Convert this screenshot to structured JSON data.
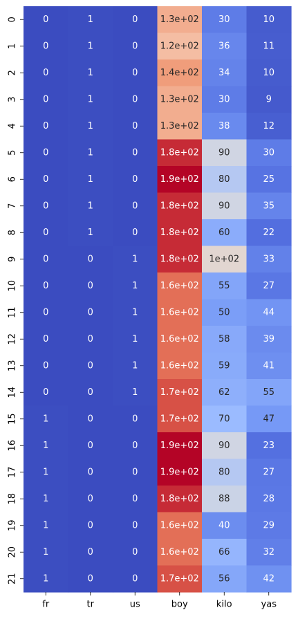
{
  "chart_data": {
    "type": "heatmap",
    "colormap": "coolwarm",
    "annotated": true,
    "colorbar": false,
    "columns": [
      "fr",
      "tr",
      "us",
      "boy",
      "kilo",
      "yas"
    ],
    "rows": [
      "0",
      "1",
      "2",
      "3",
      "4",
      "5",
      "6",
      "7",
      "8",
      "9",
      "10",
      "11",
      "12",
      "13",
      "14",
      "15",
      "16",
      "17",
      "18",
      "19",
      "20",
      "21"
    ],
    "vmin": 0,
    "vmax": 190,
    "values": [
      [
        0,
        1,
        0,
        130,
        30,
        10
      ],
      [
        0,
        1,
        0,
        120,
        36,
        11
      ],
      [
        0,
        1,
        0,
        140,
        34,
        10
      ],
      [
        0,
        1,
        0,
        130,
        30,
        9
      ],
      [
        0,
        1,
        0,
        130,
        38,
        12
      ],
      [
        0,
        1,
        0,
        180,
        90,
        30
      ],
      [
        0,
        1,
        0,
        190,
        80,
        25
      ],
      [
        0,
        1,
        0,
        180,
        90,
        35
      ],
      [
        0,
        1,
        0,
        180,
        60,
        22
      ],
      [
        0,
        0,
        1,
        180,
        100,
        33
      ],
      [
        0,
        0,
        1,
        160,
        55,
        27
      ],
      [
        0,
        0,
        1,
        160,
        50,
        44
      ],
      [
        0,
        0,
        1,
        160,
        58,
        39
      ],
      [
        0,
        0,
        1,
        160,
        59,
        41
      ],
      [
        0,
        0,
        1,
        170,
        62,
        55
      ],
      [
        1,
        0,
        0,
        170,
        70,
        47
      ],
      [
        1,
        0,
        0,
        190,
        90,
        23
      ],
      [
        1,
        0,
        0,
        190,
        80,
        27
      ],
      [
        1,
        0,
        0,
        180,
        88,
        28
      ],
      [
        1,
        0,
        0,
        160,
        40,
        29
      ],
      [
        1,
        0,
        0,
        160,
        66,
        32
      ],
      [
        1,
        0,
        0,
        170,
        56,
        42
      ]
    ],
    "labels": [
      [
        "0",
        "1",
        "0",
        "1.3e+02",
        "30",
        "10"
      ],
      [
        "0",
        "1",
        "0",
        "1.2e+02",
        "36",
        "11"
      ],
      [
        "0",
        "1",
        "0",
        "1.4e+02",
        "34",
        "10"
      ],
      [
        "0",
        "1",
        "0",
        "1.3e+02",
        "30",
        "9"
      ],
      [
        "0",
        "1",
        "0",
        "1.3e+02",
        "38",
        "12"
      ],
      [
        "0",
        "1",
        "0",
        "1.8e+02",
        "90",
        "30"
      ],
      [
        "0",
        "1",
        "0",
        "1.9e+02",
        "80",
        "25"
      ],
      [
        "0",
        "1",
        "0",
        "1.8e+02",
        "90",
        "35"
      ],
      [
        "0",
        "1",
        "0",
        "1.8e+02",
        "60",
        "22"
      ],
      [
        "0",
        "0",
        "1",
        "1.8e+02",
        "1e+02",
        "33"
      ],
      [
        "0",
        "0",
        "1",
        "1.6e+02",
        "55",
        "27"
      ],
      [
        "0",
        "0",
        "1",
        "1.6e+02",
        "50",
        "44"
      ],
      [
        "0",
        "0",
        "1",
        "1.6e+02",
        "58",
        "39"
      ],
      [
        "0",
        "0",
        "1",
        "1.6e+02",
        "59",
        "41"
      ],
      [
        "0",
        "0",
        "1",
        "1.7e+02",
        "62",
        "55"
      ],
      [
        "1",
        "0",
        "0",
        "1.7e+02",
        "70",
        "47"
      ],
      [
        "1",
        "0",
        "0",
        "1.9e+02",
        "90",
        "23"
      ],
      [
        "1",
        "0",
        "0",
        "1.9e+02",
        "80",
        "27"
      ],
      [
        "1",
        "0",
        "0",
        "1.8e+02",
        "88",
        "28"
      ],
      [
        "1",
        "0",
        "0",
        "1.6e+02",
        "40",
        "29"
      ],
      [
        "1",
        "0",
        "0",
        "1.6e+02",
        "66",
        "32"
      ],
      [
        "1",
        "0",
        "0",
        "1.7e+02",
        "56",
        "42"
      ]
    ]
  }
}
